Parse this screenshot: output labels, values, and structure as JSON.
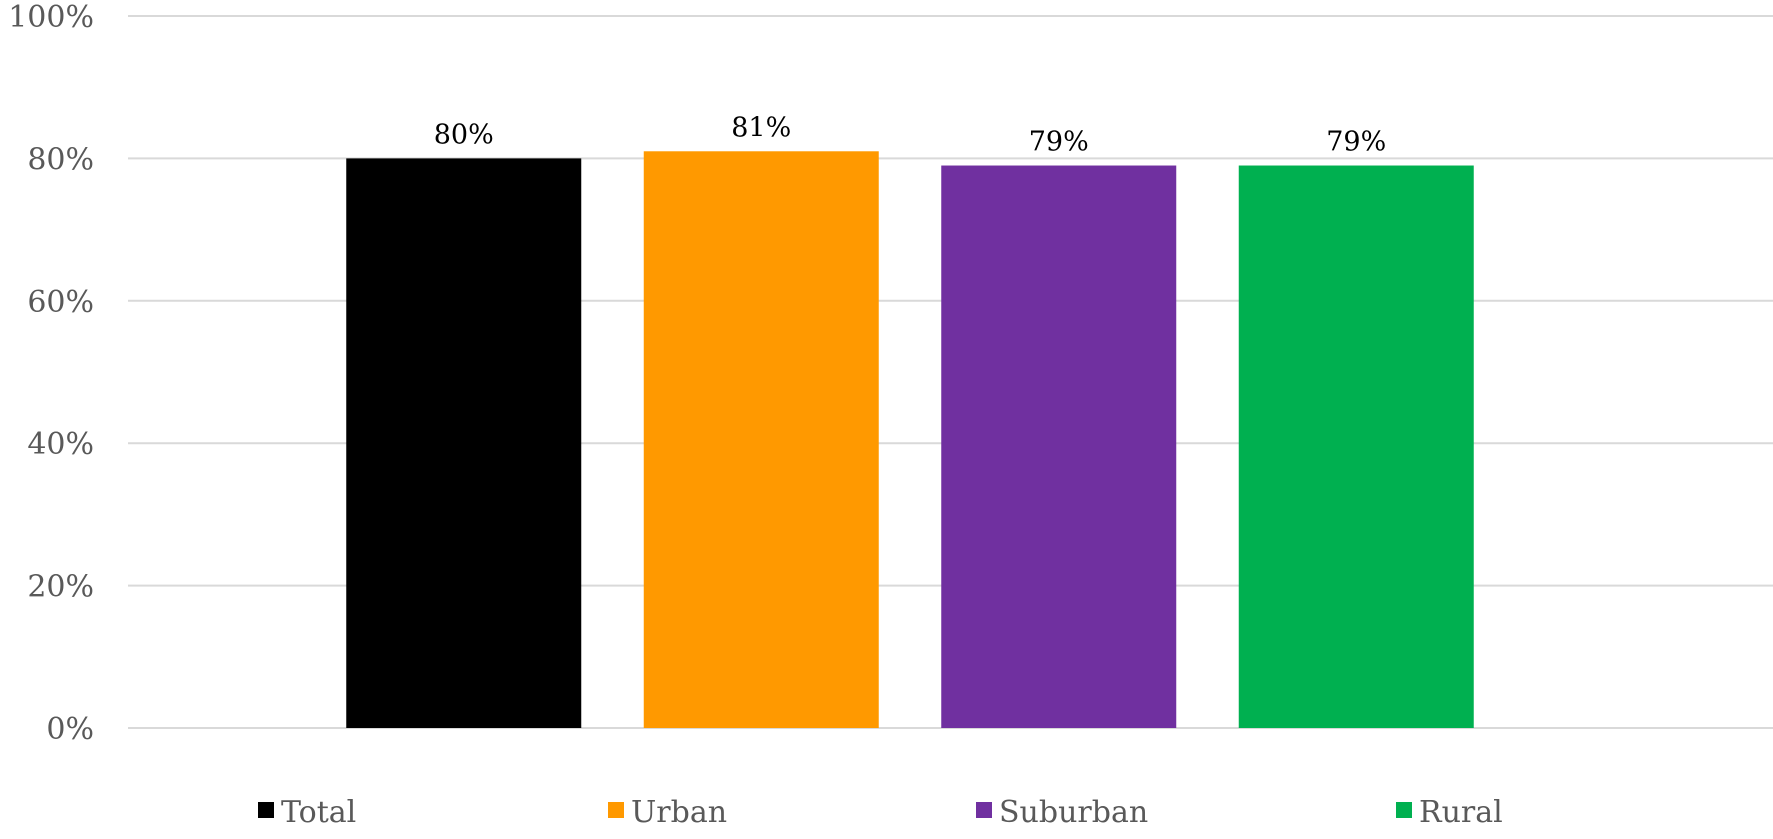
{
  "chart_data": {
    "type": "bar",
    "categories": [
      "Total",
      "Urban",
      "Suburban",
      "Rural"
    ],
    "series": [
      {
        "values": [
          80,
          81,
          79,
          79
        ],
        "colors": [
          "#000000",
          "#ff9900",
          "#7030a0",
          "#00b050"
        ],
        "data_labels": [
          "80%",
          "81%",
          "79%",
          "79%"
        ]
      }
    ],
    "ylim": [
      0,
      100
    ],
    "yticks": [
      0,
      20,
      40,
      60,
      80,
      100
    ],
    "ytick_labels": [
      "0%",
      "20%",
      "40%",
      "60%",
      "80%",
      "100%"
    ],
    "grid": true,
    "legend": {
      "placement": "bottom",
      "entries": [
        {
          "label": "Total",
          "color": "#000000"
        },
        {
          "label": "Urban",
          "color": "#ff9900"
        },
        {
          "label": "Suburban",
          "color": "#7030a0"
        },
        {
          "label": "Rural",
          "color": "#00b050"
        }
      ]
    },
    "title": "",
    "xlabel": "",
    "ylabel": ""
  }
}
